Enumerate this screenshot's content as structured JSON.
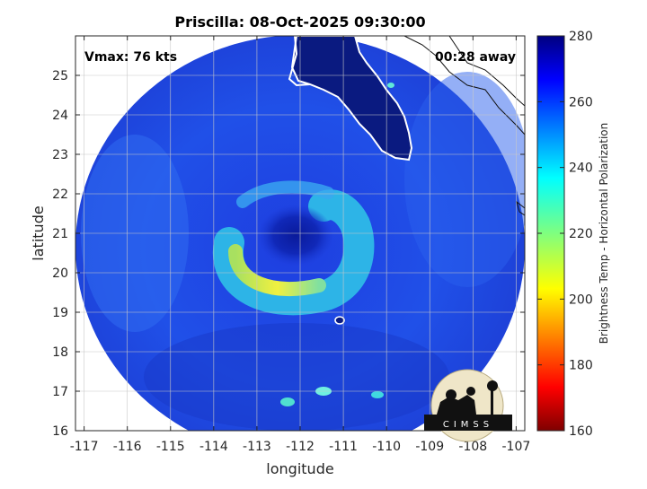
{
  "chart_data": {
    "type": "heatmap",
    "title": "Priscilla: 08-Oct-2025 09:30:00",
    "xlabel": "longitude",
    "ylabel": "latitude",
    "xlim": [
      -117.2,
      -106.8
    ],
    "ylim": [
      16,
      26
    ],
    "xticks": [
      -117,
      -116,
      -115,
      -114,
      -113,
      -112,
      -111,
      -110,
      -109,
      -108,
      -107
    ],
    "yticks": [
      16,
      17,
      18,
      19,
      20,
      21,
      22,
      23,
      24,
      25
    ],
    "grid": true,
    "annotations": {
      "vmax": "Vmax: 76 kts",
      "time_offset": "00:28 away"
    },
    "colorbar": {
      "label": "Brightness Temp - Horizontal Polarization",
      "min": 160,
      "max": 280,
      "ticks": [
        160,
        180,
        200,
        220,
        240,
        260,
        280
      ],
      "colormap": "jet"
    },
    "storm_center": {
      "lon": -112.1,
      "lat": 20.95
    },
    "logo_text": "CIMSS"
  }
}
